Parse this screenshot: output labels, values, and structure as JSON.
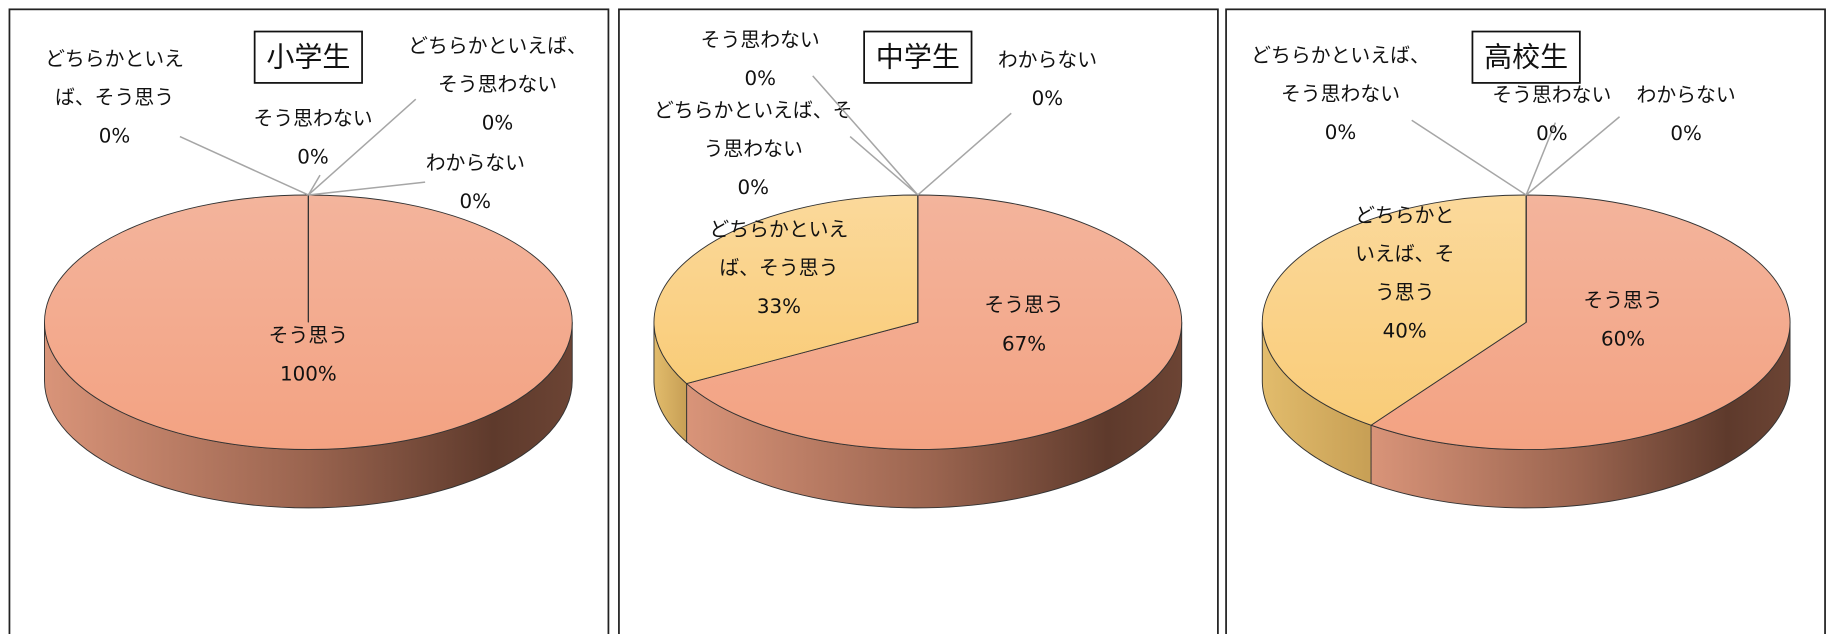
{
  "chart_data": [
    {
      "type": "pie",
      "title": "小学生",
      "categories": [
        "そう思う",
        "どちらかといえば、そう思う",
        "どちらかといえば、そう思わない",
        "そう思わない",
        "わからない"
      ],
      "values": [
        100,
        0,
        0,
        0,
        0
      ],
      "value_labels": [
        "100%",
        "0%",
        "0%",
        "0%",
        "0%"
      ],
      "colors": [
        "#f4a98a",
        "#fbd489",
        "#a9c4e8",
        "#b5d99c",
        "#c9c9c9"
      ]
    },
    {
      "type": "pie",
      "title": "中学生",
      "categories": [
        "そう思う",
        "どちらかといえば、そう思う",
        "どちらかといえば、そう思わない",
        "そう思わない",
        "わからない"
      ],
      "values": [
        67,
        33,
        0,
        0,
        0
      ],
      "value_labels": [
        "67%",
        "33%",
        "0%",
        "0%",
        "0%"
      ],
      "colors": [
        "#f4a98a",
        "#fbd489",
        "#a9c4e8",
        "#b5d99c",
        "#c9c9c9"
      ]
    },
    {
      "type": "pie",
      "title": "高校生",
      "categories": [
        "そう思う",
        "どちらかといえば、そう思う",
        "どちらかといえば、そう思わない",
        "そう思わない",
        "わからない"
      ],
      "values": [
        60,
        40,
        0,
        0,
        0
      ],
      "value_labels": [
        "60%",
        "40%",
        "0%",
        "0%",
        "0%"
      ],
      "colors": [
        "#f4a98a",
        "#fbd489",
        "#a9c4e8",
        "#b5d99c",
        "#c9c9c9"
      ]
    }
  ]
}
